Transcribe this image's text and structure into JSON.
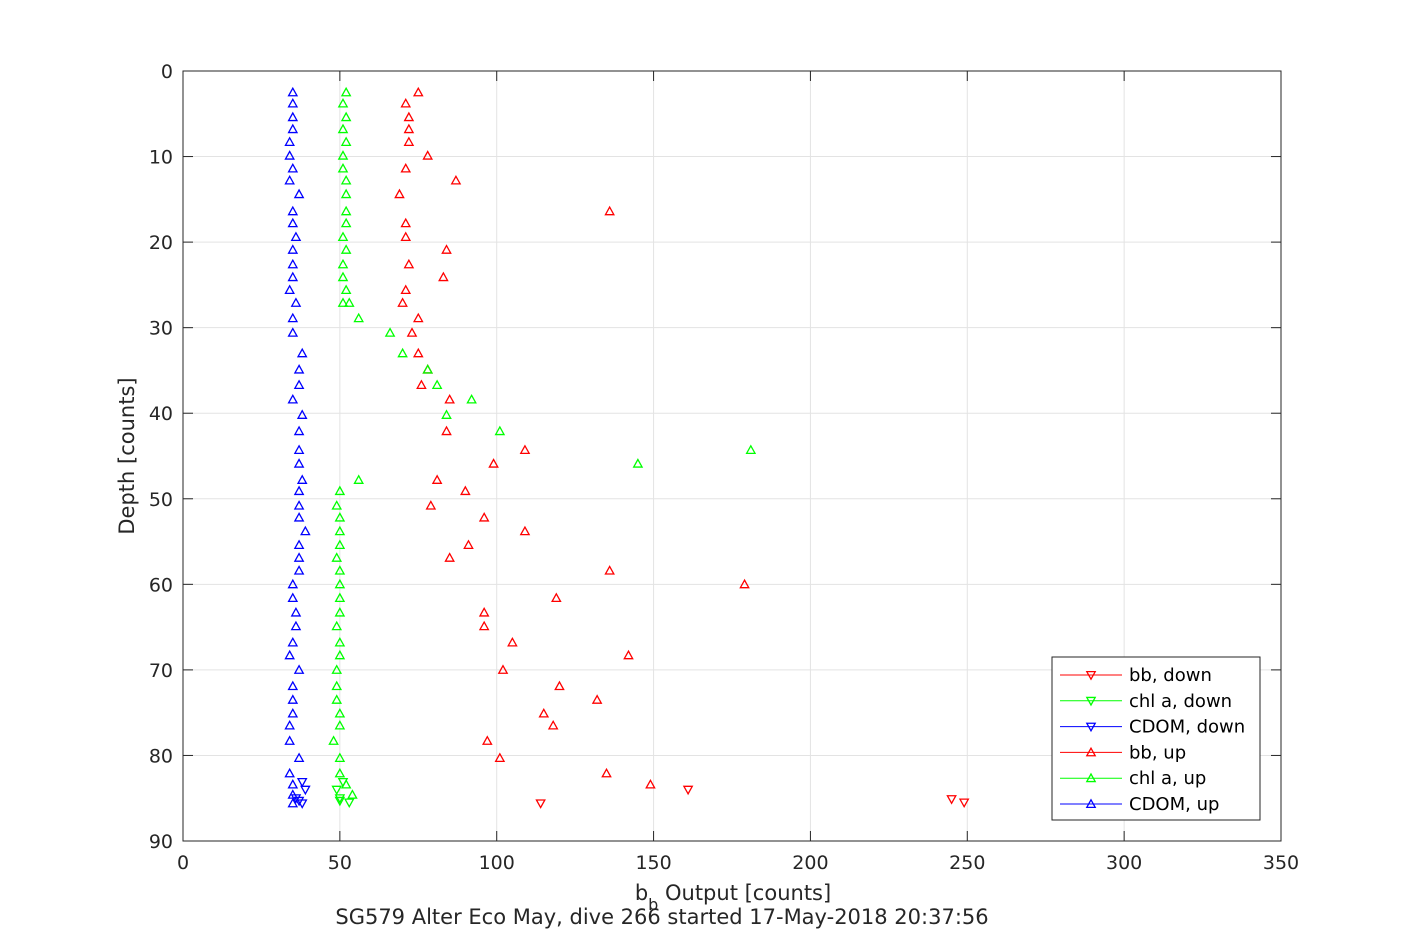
{
  "chart_data": {
    "type": "scatter",
    "title": "",
    "xlabel_main": "b",
    "xlabel_sub": "b",
    "xlabel_rest": " Output [counts]",
    "ylabel": "Depth [counts]",
    "caption": "SG579 Alter Eco May, dive 266 started 17-May-2018 20:37:56",
    "xlim": [
      0,
      350
    ],
    "ylim": [
      0,
      90
    ],
    "y_reversed": true,
    "grid": true,
    "legend_position": "bottom-right",
    "xticks": [
      "0",
      "50",
      "100",
      "150",
      "200",
      "250",
      "300",
      "350"
    ],
    "yticks": [
      "0",
      "10",
      "20",
      "30",
      "40",
      "50",
      "60",
      "70",
      "80",
      "90"
    ],
    "series": [
      {
        "name": "bb, down",
        "color": "#ff0000",
        "marker": "triangle-down",
        "x": [
          161,
          245,
          249,
          114
        ],
        "y": [
          84.0,
          85.1,
          85.5,
          85.6
        ]
      },
      {
        "name": "chl a, down",
        "color": "#00ff00",
        "marker": "triangle-down",
        "x": [
          51,
          49,
          50,
          50,
          53
        ],
        "y": [
          83.1,
          84.0,
          85.0,
          85.3,
          85.5
        ]
      },
      {
        "name": "CDOM, down",
        "color": "#0000ff",
        "marker": "triangle-down",
        "x": [
          38,
          39,
          36,
          37,
          38
        ],
        "y": [
          83.1,
          84.0,
          85.0,
          85.3,
          85.6
        ]
      },
      {
        "name": "bb, up",
        "color": "#ff0000",
        "marker": "triangle-up",
        "x": [
          75,
          71,
          72,
          72,
          72,
          78,
          71,
          87,
          69,
          136,
          71,
          71,
          84,
          72,
          83,
          71,
          70,
          75,
          73,
          75,
          78,
          76,
          85,
          84,
          109,
          99,
          81,
          90,
          79,
          96,
          109,
          91,
          85,
          136,
          179,
          119,
          96,
          96,
          105,
          142,
          102,
          120,
          132,
          115,
          118,
          97,
          101,
          135,
          149
        ],
        "y": [
          2.5,
          3.8,
          5.4,
          6.8,
          8.3,
          9.9,
          11.4,
          12.8,
          14.4,
          16.4,
          17.8,
          19.4,
          20.9,
          22.6,
          24.1,
          25.6,
          27.1,
          28.9,
          30.6,
          33.0,
          34.9,
          36.7,
          38.4,
          42.1,
          44.3,
          45.9,
          47.8,
          49.1,
          50.8,
          52.2,
          53.8,
          55.4,
          56.9,
          58.4,
          60.0,
          61.6,
          63.3,
          64.9,
          66.8,
          68.3,
          70.0,
          71.9,
          73.5,
          75.1,
          76.5,
          78.3,
          80.3,
          82.1,
          83.4
        ]
      },
      {
        "name": "chl a, up",
        "color": "#00ff00",
        "marker": "triangle-up",
        "x": [
          52,
          51,
          52,
          51,
          52,
          51,
          51,
          52,
          52,
          52,
          52,
          51,
          52,
          51,
          51,
          52,
          51,
          53,
          56,
          66,
          70,
          78,
          81,
          92,
          84,
          101,
          181,
          145,
          56,
          50,
          49,
          50,
          50,
          50,
          49,
          50,
          50,
          50,
          50,
          49,
          50,
          50,
          49,
          49,
          49,
          50,
          50,
          48,
          50,
          50,
          52,
          54
        ],
        "y": [
          2.5,
          3.8,
          5.4,
          6.8,
          8.3,
          9.9,
          11.4,
          12.8,
          14.4,
          16.4,
          17.8,
          19.4,
          20.9,
          22.6,
          24.1,
          25.6,
          27.1,
          27.1,
          28.9,
          30.6,
          33.0,
          34.9,
          36.7,
          38.4,
          40.2,
          42.1,
          44.3,
          45.9,
          47.8,
          49.1,
          50.8,
          52.2,
          53.8,
          55.4,
          56.9,
          58.4,
          60.0,
          61.6,
          63.3,
          64.9,
          66.8,
          68.3,
          70.0,
          71.9,
          73.5,
          75.1,
          76.5,
          78.3,
          80.3,
          82.1,
          83.4,
          84.6
        ]
      },
      {
        "name": "CDOM, up",
        "color": "#0000ff",
        "marker": "triangle-up",
        "x": [
          35,
          35,
          35,
          35,
          34,
          34,
          35,
          34,
          37,
          35,
          35,
          36,
          35,
          35,
          35,
          34,
          36,
          35,
          35,
          38,
          37,
          37,
          35,
          38,
          37,
          37,
          37,
          38,
          37,
          37,
          37,
          39,
          37,
          37,
          37,
          35,
          35,
          36,
          36,
          35,
          34,
          37,
          35,
          35,
          35,
          34,
          34,
          37,
          34,
          35,
          35,
          35
        ],
        "y": [
          2.5,
          3.8,
          5.4,
          6.8,
          8.3,
          9.9,
          11.4,
          12.8,
          14.4,
          16.4,
          17.8,
          19.4,
          20.9,
          22.6,
          24.1,
          25.6,
          27.1,
          28.9,
          30.6,
          33.0,
          34.9,
          36.7,
          38.4,
          40.2,
          42.1,
          44.3,
          45.9,
          47.8,
          49.1,
          50.8,
          52.2,
          53.8,
          55.4,
          56.9,
          58.4,
          60.0,
          61.6,
          63.3,
          64.9,
          66.8,
          68.3,
          70.0,
          71.9,
          73.5,
          75.1,
          76.5,
          78.3,
          80.3,
          82.1,
          83.4,
          84.6,
          85.6
        ]
      }
    ]
  }
}
